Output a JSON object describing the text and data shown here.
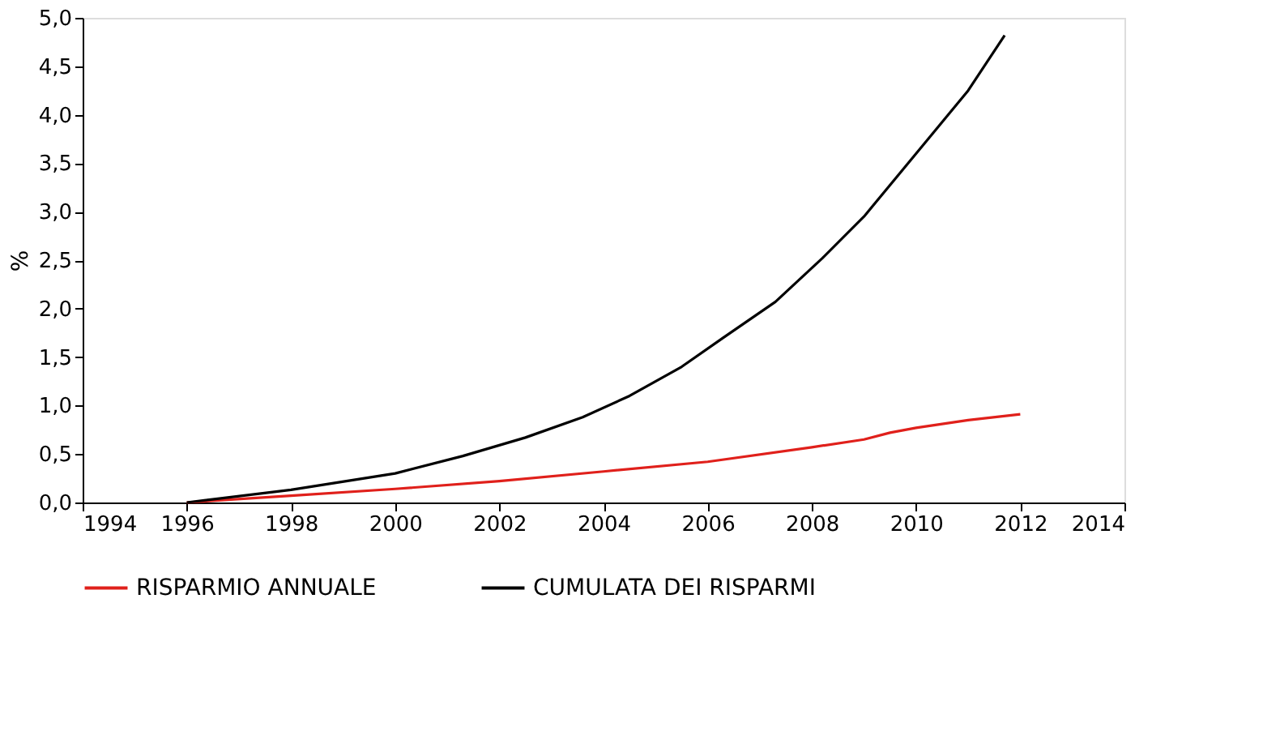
{
  "chart_data": {
    "type": "line",
    "ylabel": "%",
    "xlim": [
      1994,
      2014
    ],
    "xticks": [
      1994,
      1996,
      1998,
      2000,
      2002,
      2004,
      2006,
      2008,
      2010,
      2012,
      2014
    ],
    "ylim": [
      0,
      5
    ],
    "yticks": [
      {
        "value": 0,
        "label": "0,0"
      },
      {
        "value": 0.5,
        "label": "0,5"
      },
      {
        "value": 1,
        "label": "1,0"
      },
      {
        "value": 1.5,
        "label": "1,5"
      },
      {
        "value": 2,
        "label": "2,0"
      },
      {
        "value": 2.5,
        "label": "2,5"
      },
      {
        "value": 3,
        "label": "3,0"
      },
      {
        "value": 3.5,
        "label": "3,5"
      },
      {
        "value": 4,
        "label": "4,0"
      },
      {
        "value": 4.5,
        "label": "4,5"
      },
      {
        "value": 5,
        "label": "5,0"
      }
    ],
    "grid": false,
    "legend": "bottom",
    "marker": "none",
    "line_style": "solid",
    "series": [
      {
        "name": "RISPARMIO ANNUALE",
        "color": "#e0201b",
        "x": [
          1996,
          1998,
          2000,
          2002,
          2004,
          2006,
          2008,
          2009,
          2009.5,
          2010,
          2011,
          2012
        ],
        "values": [
          0,
          0.07,
          0.14,
          0.22,
          0.32,
          0.42,
          0.57,
          0.65,
          0.72,
          0.77,
          0.85,
          0.91
        ]
      },
      {
        "name": "CUMULATA DEI RISPARMI",
        "color": "#000000",
        "x": [
          1996,
          1998,
          2000,
          2001.3,
          2002.5,
          2003.6,
          2004.5,
          2005.5,
          2006.3,
          2007.3,
          2008.2,
          2009,
          2010,
          2011,
          2011.7
        ],
        "values": [
          0,
          0.13,
          0.3,
          0.48,
          0.67,
          0.88,
          1.1,
          1.4,
          1.7,
          2.07,
          2.52,
          2.95,
          3.6,
          4.25,
          4.82
        ]
      }
    ]
  }
}
